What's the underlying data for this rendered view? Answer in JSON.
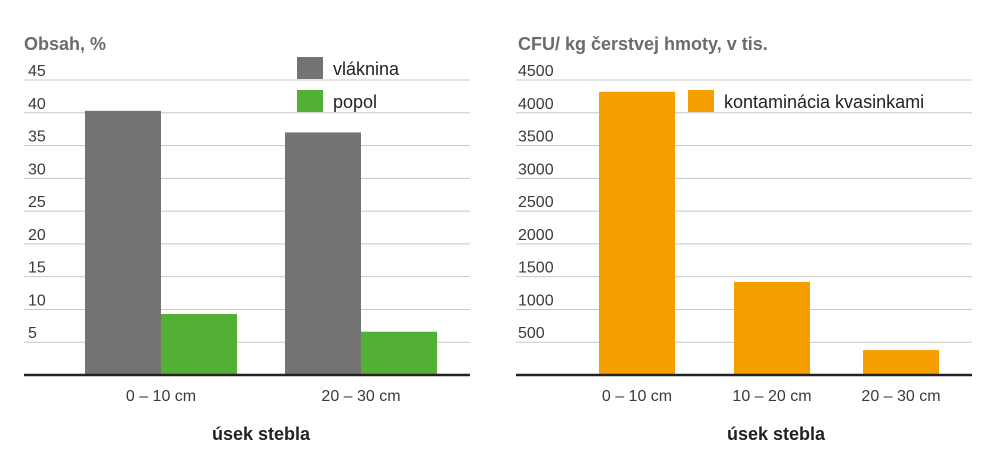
{
  "chart_data": [
    {
      "type": "bar",
      "title": "",
      "ylabel": "Obsah, %",
      "xlabel": "úsek stebla",
      "categories": [
        "0 – 10 cm",
        "20 – 30 cm"
      ],
      "ylim": [
        0,
        45
      ],
      "yticks": [
        5,
        10,
        15,
        20,
        25,
        30,
        35,
        40,
        45
      ],
      "grid": true,
      "legend_position": "top-right",
      "series": [
        {
          "name": "vláknina",
          "color": "#737373",
          "values": [
            40.3,
            37.0
          ]
        },
        {
          "name": "popol",
          "color": "#52b135",
          "values": [
            9.3,
            6.6
          ]
        }
      ]
    },
    {
      "type": "bar",
      "title": "",
      "ylabel": "CFU/ kg čerstvej hmoty, v tis.",
      "xlabel": "úsek stebla",
      "categories": [
        "0 – 10 cm",
        "10 – 20 cm",
        "20 – 30 cm"
      ],
      "ylim": [
        0,
        4500
      ],
      "yticks": [
        500,
        1000,
        1500,
        2000,
        2500,
        3000,
        3500,
        4000,
        4500
      ],
      "grid": true,
      "legend_position": "top-right",
      "series": [
        {
          "name": "kontaminácia kvasinkami",
          "color": "#f5a000",
          "values": [
            4320,
            1420,
            380
          ]
        }
      ]
    }
  ]
}
